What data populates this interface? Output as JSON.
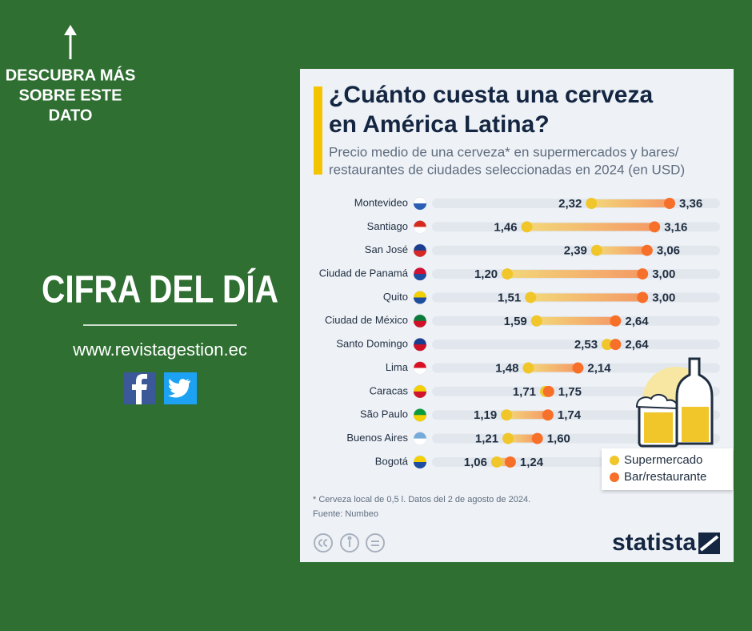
{
  "page": {
    "cta": [
      "DESCUBRA MÁS",
      "SOBRE ESTE",
      "DATO"
    ],
    "headline": "CIFRA DEL DÍA",
    "website": "www.revistagestion.ec",
    "brand": "statista"
  },
  "chart_data": {
    "type": "dumbbell",
    "title": [
      "¿Cuánto cuesta una cerveza",
      "en América Latina?"
    ],
    "subtitle": [
      "Precio medio de una cerveza* en supermercados y bares/",
      "restaurantes de ciudades seleccionadas en 2024 (en USD)"
    ],
    "footnote": "* Cerveza local de 0,5 l. Datos del 2 de agosto de 2024.",
    "source": "Fuente: Numbeo",
    "categories": [
      "Montevideo",
      "Santiago",
      "San José",
      "Ciudad de Panamá",
      "Quito",
      "Ciudad de México",
      "Santo Domingo",
      "Lima",
      "Caracas",
      "São Paulo",
      "Buenos Aires",
      "Bogotá"
    ],
    "series": [
      {
        "name": "Supermercado",
        "color": "#f0c62a",
        "values": [
          2.32,
          1.46,
          2.39,
          1.2,
          1.51,
          1.59,
          2.53,
          1.48,
          1.71,
          1.19,
          1.21,
          1.06
        ],
        "value_labels": [
          "2,32",
          "1,46",
          "2,39",
          "1,20",
          "1,51",
          "1,59",
          "2,53",
          "1,48",
          "1,71",
          "1,19",
          "1,21",
          "1,06"
        ]
      },
      {
        "name": "Bar/restaurante",
        "color": "#f7702a",
        "values": [
          3.36,
          3.16,
          3.06,
          3.0,
          3.0,
          2.64,
          2.64,
          2.14,
          1.75,
          1.74,
          1.6,
          1.24
        ],
        "value_labels": [
          "3,36",
          "3,16",
          "3,06",
          "3,00",
          "3,00",
          "2,64",
          "2,64",
          "2,14",
          "1,75",
          "1,74",
          "1,60",
          "1,24"
        ]
      }
    ]
  }
}
